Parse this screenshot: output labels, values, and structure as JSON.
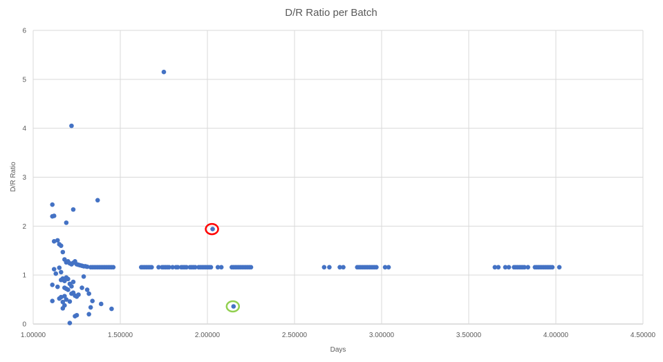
{
  "chart_data": {
    "type": "scatter",
    "title": "D/R Ratio per Batch",
    "xlabel": "Days",
    "ylabel": "D/R Ratio",
    "xlim": [
      1.0,
      4.5
    ],
    "ylim": [
      0,
      6
    ],
    "x_ticks": [
      "1.00000",
      "1.50000",
      "2.00000",
      "2.50000",
      "3.00000",
      "3.50000",
      "4.00000",
      "4.50000"
    ],
    "y_ticks": [
      "0",
      "1",
      "2",
      "3",
      "4",
      "5",
      "6"
    ],
    "grid": true,
    "legend": "none",
    "colors": {
      "points": "#4472C4",
      "grid": "#D9D9D9",
      "text": "#595959",
      "highlight_red": "#FF0000",
      "highlight_green": "#92D050"
    },
    "series": [
      {
        "points": [
          [
            1.75,
            5.15
          ],
          [
            1.22,
            4.05
          ],
          [
            1.37,
            2.53
          ],
          [
            1.11,
            2.44
          ],
          [
            1.23,
            2.34
          ],
          [
            1.11,
            2.2
          ],
          [
            1.12,
            2.21
          ],
          [
            1.19,
            2.07
          ],
          [
            2.03,
            1.94
          ],
          [
            1.12,
            1.69
          ],
          [
            1.14,
            1.71
          ],
          [
            1.15,
            1.63
          ],
          [
            1.16,
            1.6
          ],
          [
            1.17,
            1.47
          ],
          [
            1.18,
            1.32
          ],
          [
            1.19,
            1.26
          ],
          [
            1.2,
            1.28
          ],
          [
            1.21,
            1.24
          ],
          [
            1.22,
            1.22
          ],
          [
            1.23,
            1.25
          ],
          [
            1.24,
            1.28
          ],
          [
            1.25,
            1.22
          ],
          [
            1.26,
            1.21
          ],
          [
            1.27,
            1.2
          ],
          [
            1.28,
            1.19
          ],
          [
            1.29,
            1.18
          ],
          [
            1.3,
            1.18
          ],
          [
            1.31,
            1.17
          ],
          [
            1.12,
            1.12
          ],
          [
            1.13,
            1.03
          ],
          [
            1.15,
            1.15
          ],
          [
            1.16,
            1.06
          ],
          [
            1.17,
            0.93
          ],
          [
            1.18,
            0.88
          ],
          [
            1.19,
            0.95
          ],
          [
            1.2,
            0.92
          ],
          [
            1.21,
            0.82
          ],
          [
            1.22,
            0.77
          ],
          [
            1.23,
            0.86
          ],
          [
            1.11,
            0.8
          ],
          [
            1.14,
            0.76
          ],
          [
            1.16,
            0.9
          ],
          [
            1.18,
            0.74
          ],
          [
            1.19,
            0.72
          ],
          [
            1.2,
            0.7
          ],
          [
            1.22,
            0.62
          ],
          [
            1.23,
            0.64
          ],
          [
            1.24,
            0.58
          ],
          [
            1.25,
            0.56
          ],
          [
            1.26,
            0.6
          ],
          [
            1.28,
            0.74
          ],
          [
            1.29,
            0.97
          ],
          [
            1.31,
            0.7
          ],
          [
            1.32,
            0.62
          ],
          [
            1.15,
            0.52
          ],
          [
            1.16,
            0.55
          ],
          [
            1.17,
            0.45
          ],
          [
            1.18,
            0.57
          ],
          [
            1.19,
            0.5
          ],
          [
            1.21,
            0.46
          ],
          [
            1.11,
            0.47
          ],
          [
            1.17,
            0.32
          ],
          [
            1.18,
            0.38
          ],
          [
            1.24,
            0.16
          ],
          [
            1.25,
            0.18
          ],
          [
            1.21,
            0.02
          ],
          [
            1.32,
            0.2
          ],
          [
            1.33,
            0.34
          ],
          [
            1.34,
            0.47
          ],
          [
            1.39,
            0.41
          ],
          [
            1.45,
            0.31
          ],
          [
            1.33,
            1.16
          ],
          [
            1.34,
            1.16
          ],
          [
            1.35,
            1.16
          ],
          [
            1.36,
            1.16
          ],
          [
            1.37,
            1.16
          ],
          [
            1.38,
            1.16
          ],
          [
            1.39,
            1.16
          ],
          [
            1.4,
            1.16
          ],
          [
            1.41,
            1.16
          ],
          [
            1.42,
            1.16
          ],
          [
            1.43,
            1.16
          ],
          [
            1.44,
            1.16
          ],
          [
            1.45,
            1.16
          ],
          [
            1.46,
            1.16
          ],
          [
            1.62,
            1.16
          ],
          [
            1.63,
            1.16
          ],
          [
            1.64,
            1.16
          ],
          [
            1.65,
            1.16
          ],
          [
            1.66,
            1.16
          ],
          [
            1.67,
            1.16
          ],
          [
            1.68,
            1.16
          ],
          [
            1.72,
            1.16
          ],
          [
            1.74,
            1.16
          ],
          [
            1.75,
            1.16
          ],
          [
            1.76,
            1.16
          ],
          [
            1.77,
            1.16
          ],
          [
            1.78,
            1.16
          ],
          [
            1.8,
            1.16
          ],
          [
            1.82,
            1.16
          ],
          [
            1.83,
            1.16
          ],
          [
            1.85,
            1.16
          ],
          [
            1.86,
            1.16
          ],
          [
            1.87,
            1.16
          ],
          [
            1.88,
            1.16
          ],
          [
            1.9,
            1.16
          ],
          [
            1.91,
            1.16
          ],
          [
            1.92,
            1.16
          ],
          [
            1.93,
            1.16
          ],
          [
            1.95,
            1.16
          ],
          [
            1.96,
            1.16
          ],
          [
            1.97,
            1.16
          ],
          [
            1.98,
            1.16
          ],
          [
            1.99,
            1.16
          ],
          [
            2.0,
            1.16
          ],
          [
            2.01,
            1.16
          ],
          [
            2.02,
            1.16
          ],
          [
            2.06,
            1.16
          ],
          [
            2.08,
            1.16
          ],
          [
            2.14,
            1.16
          ],
          [
            2.15,
            1.16
          ],
          [
            2.16,
            1.16
          ],
          [
            2.17,
            1.16
          ],
          [
            2.18,
            1.16
          ],
          [
            2.19,
            1.16
          ],
          [
            2.2,
            1.16
          ],
          [
            2.21,
            1.16
          ],
          [
            2.22,
            1.16
          ],
          [
            2.23,
            1.16
          ],
          [
            2.24,
            1.16
          ],
          [
            2.25,
            1.16
          ],
          [
            2.67,
            1.16
          ],
          [
            2.7,
            1.16
          ],
          [
            2.76,
            1.16
          ],
          [
            2.78,
            1.16
          ],
          [
            2.86,
            1.16
          ],
          [
            2.87,
            1.16
          ],
          [
            2.88,
            1.16
          ],
          [
            2.89,
            1.16
          ],
          [
            2.9,
            1.16
          ],
          [
            2.91,
            1.16
          ],
          [
            2.92,
            1.16
          ],
          [
            2.93,
            1.16
          ],
          [
            2.94,
            1.16
          ],
          [
            2.95,
            1.16
          ],
          [
            2.96,
            1.16
          ],
          [
            2.97,
            1.16
          ],
          [
            3.02,
            1.16
          ],
          [
            3.04,
            1.16
          ],
          [
            3.65,
            1.16
          ],
          [
            3.67,
            1.16
          ],
          [
            3.71,
            1.16
          ],
          [
            3.73,
            1.16
          ],
          [
            3.76,
            1.16
          ],
          [
            3.77,
            1.16
          ],
          [
            3.78,
            1.16
          ],
          [
            3.79,
            1.16
          ],
          [
            3.8,
            1.16
          ],
          [
            3.81,
            1.16
          ],
          [
            3.82,
            1.16
          ],
          [
            3.84,
            1.16
          ],
          [
            3.88,
            1.16
          ],
          [
            3.89,
            1.16
          ],
          [
            3.9,
            1.16
          ],
          [
            3.91,
            1.16
          ],
          [
            3.92,
            1.16
          ],
          [
            3.93,
            1.16
          ],
          [
            3.94,
            1.16
          ],
          [
            3.95,
            1.16
          ],
          [
            3.96,
            1.16
          ],
          [
            3.97,
            1.16
          ],
          [
            3.98,
            1.16
          ],
          [
            4.02,
            1.16
          ],
          [
            2.15,
            0.36
          ]
        ]
      }
    ],
    "annotations": [
      {
        "type": "circle",
        "color": "#FF0000",
        "x": 2.03,
        "y": 1.94
      },
      {
        "type": "circle",
        "color": "#92D050",
        "x": 2.15,
        "y": 0.36
      }
    ]
  }
}
